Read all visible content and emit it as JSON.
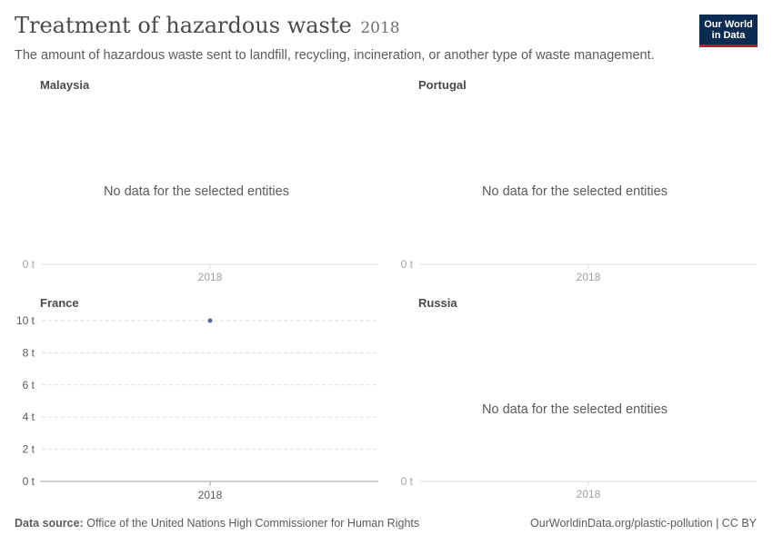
{
  "header": {
    "title": "Treatment of hazardous waste",
    "year": "2018",
    "subtitle": "The amount of hazardous waste sent to landfill, recycling, incineration, or another type of waste management."
  },
  "logo": {
    "line1": "Our World",
    "line2": "in Data",
    "bg": "#0c2b50",
    "accent": "#c8102e"
  },
  "footer": {
    "source_label": "Data source:",
    "source": "Office of the United Nations High Commissioner for Human Rights",
    "link": "OurWorldinData.org/plastic-pollution | CC BY"
  },
  "colors": {
    "point": "#4c6a9c",
    "grid": "#dddddd",
    "axis": "#a1a1a1",
    "dim_text": "#a1a1a1",
    "text": "#5b5b5b"
  },
  "chart_data": [
    {
      "type": "scatter",
      "title": "Malaysia",
      "has_data": false,
      "no_data_message": "No data for the selected entities",
      "x_ticks": [
        "2018"
      ],
      "y_ticks": [
        "0 t"
      ],
      "unit": "t",
      "points": []
    },
    {
      "type": "scatter",
      "title": "Portugal",
      "has_data": false,
      "no_data_message": "No data for the selected entities",
      "x_ticks": [
        "2018"
      ],
      "y_ticks": [
        "0 t"
      ],
      "unit": "t",
      "points": []
    },
    {
      "type": "scatter",
      "title": "France",
      "has_data": true,
      "x_ticks": [
        "2018"
      ],
      "y_ticks": [
        "0 t",
        "2 t",
        "4 t",
        "6 t",
        "8 t",
        "10 t"
      ],
      "ylim": [
        0,
        10
      ],
      "unit": "t",
      "grid": true,
      "points": [
        {
          "x": "2018",
          "y": 10
        }
      ]
    },
    {
      "type": "scatter",
      "title": "Russia",
      "has_data": false,
      "no_data_message": "No data for the selected entities",
      "x_ticks": [
        "2018"
      ],
      "y_ticks": [
        "0 t"
      ],
      "unit": "t",
      "points": []
    }
  ]
}
